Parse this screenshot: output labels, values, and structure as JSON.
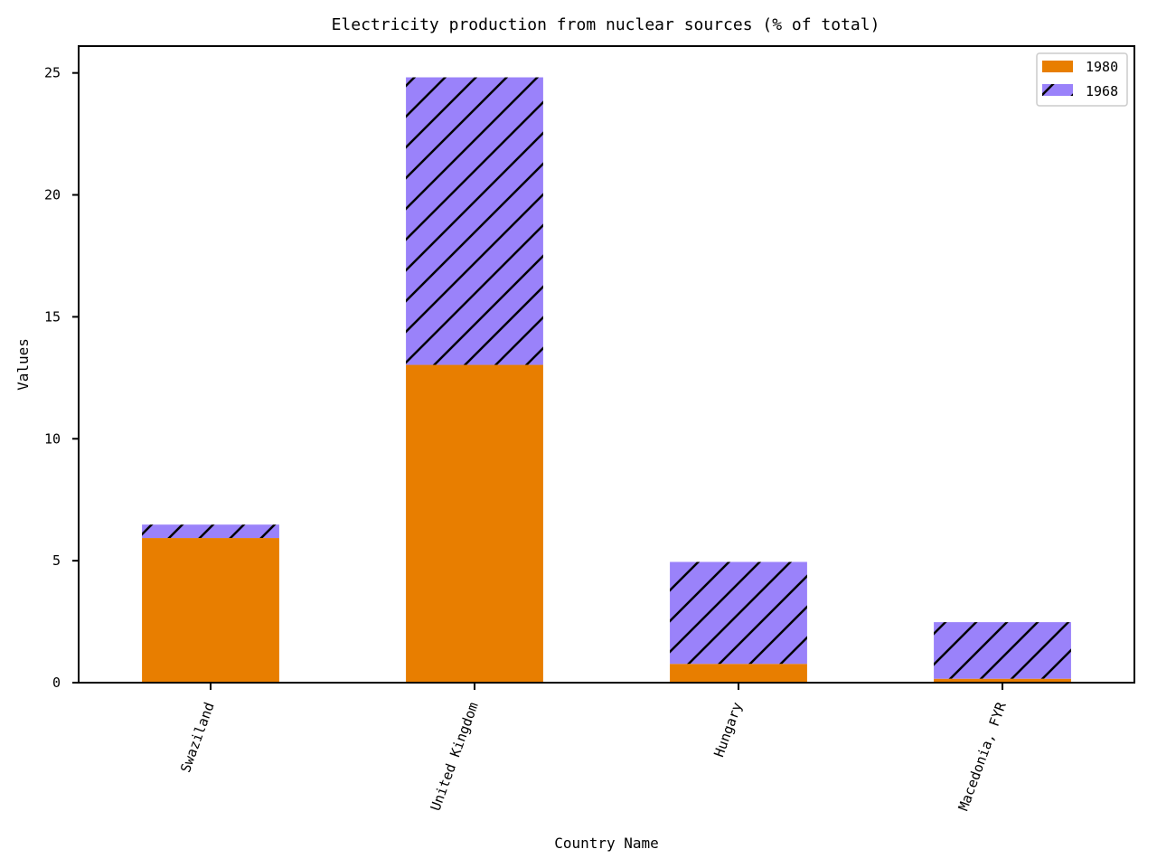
{
  "chart_data": {
    "type": "bar",
    "stacked": true,
    "title": "Electricity production from nuclear sources (% of total)",
    "xlabel": "Country Name",
    "ylabel": "Values",
    "categories": [
      "Swaziland",
      "United Kingdom",
      "Hungary",
      "Macedonia, FYR"
    ],
    "series": [
      {
        "name": "1980",
        "values": [
          5.93,
          13.03,
          0.77,
          0.16
        ],
        "color": "#e87e00",
        "pattern": "solid"
      },
      {
        "name": "1968",
        "values": [
          0.55,
          11.79,
          4.18,
          2.32
        ],
        "color": "#9a82fa",
        "pattern": "diagonal-hatch"
      }
    ],
    "ylim": [
      0,
      26.1
    ],
    "yticks": [
      0,
      5,
      10,
      15,
      20,
      25
    ],
    "ytick_labels": [
      "0",
      "5",
      "10",
      "15",
      "20",
      "25"
    ],
    "grid": false,
    "legend_position": "top-right",
    "xtick_rotation": "rotated"
  }
}
